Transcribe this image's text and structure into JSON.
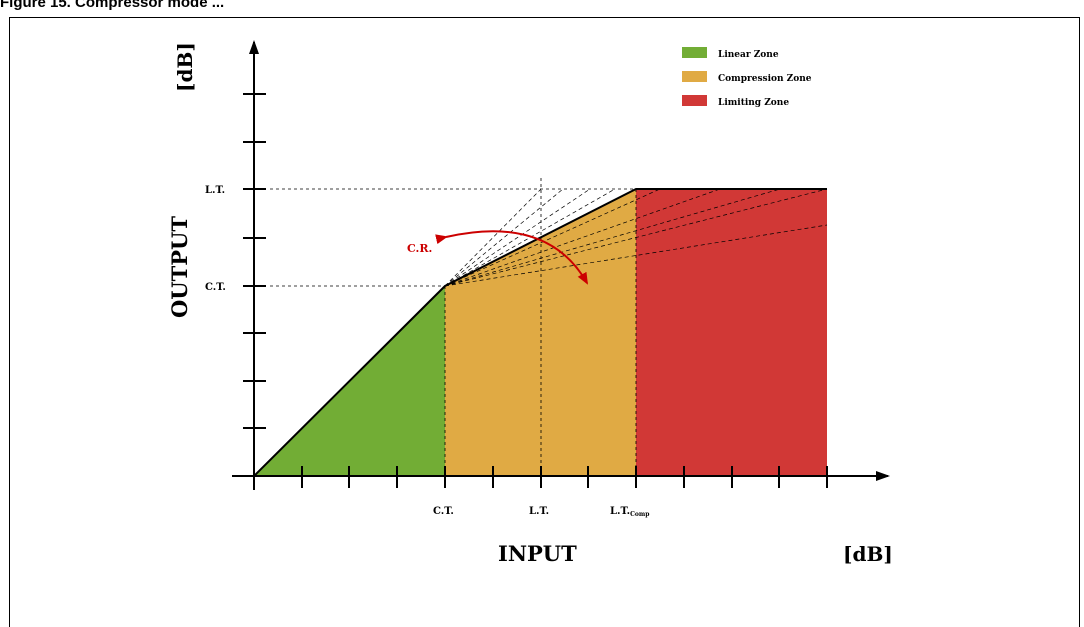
{
  "caption": "Figure 15. Compressor mode ...",
  "y_unit": "[dB]",
  "x_unit": "[dB]",
  "y_axis_label": "OUTPUT",
  "x_axis_label": "INPUT",
  "y_ticks": {
    "lt": "L.T.",
    "ct": "C.T."
  },
  "x_ticks": {
    "ct": "C.T.",
    "lt": "L.T.",
    "ltcomp_main": "L.T.",
    "ltcomp_sub": "Comp"
  },
  "cr_label": "C.R.",
  "legend": [
    {
      "label": "Linear Zone",
      "color": "#72ad35"
    },
    {
      "label": "Compression Zone",
      "color": "#e0aa44"
    },
    {
      "label": "Limiting Zone",
      "color": "#d13836"
    }
  ],
  "colors": {
    "linear": "#72ad35",
    "compression": "#e0aa44",
    "limiting": "#d13836",
    "arrow": "#cc0000"
  }
}
